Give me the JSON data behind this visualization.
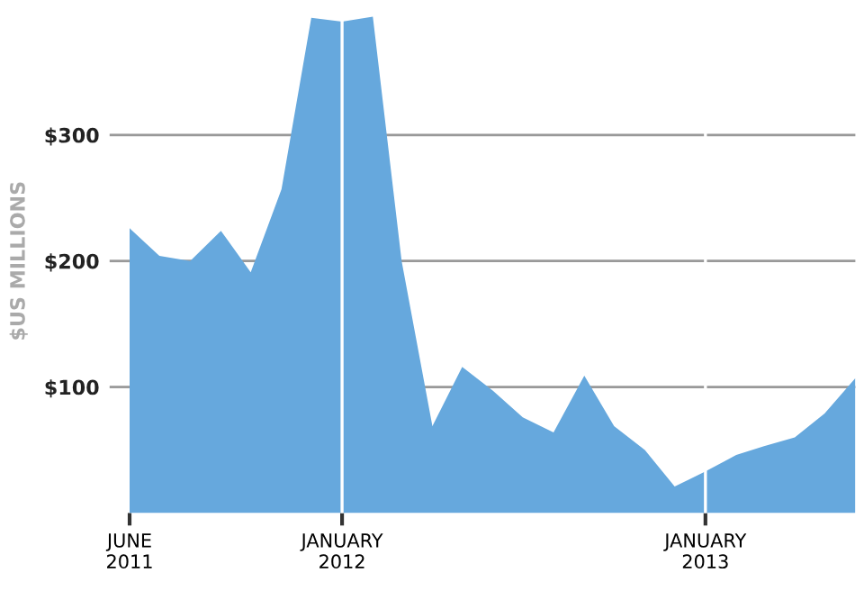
{
  "chart_data": {
    "type": "area",
    "ylabel": "$US MILLIONS",
    "x": [
      "2011-06",
      "2011-07",
      "2011-08",
      "2011-09",
      "2011-10",
      "2011-11",
      "2011-12",
      "2012-01",
      "2012-02",
      "2012-03",
      "2012-04",
      "2012-05",
      "2012-06",
      "2012-07",
      "2012-08",
      "2012-09",
      "2012-10",
      "2012-11",
      "2012-12",
      "2013-01",
      "2013-02",
      "2013-03",
      "2013-04",
      "2013-05",
      "2013-06"
    ],
    "series": [
      {
        "color": "#66a8dd",
        "values": [
          226,
          204,
          200,
          224,
          191,
          257,
          393,
          390,
          394,
          200,
          69,
          116,
          97,
          76,
          64,
          109,
          69,
          50,
          21,
          33,
          46,
          53,
          60,
          79,
          107
        ]
      }
    ],
    "xlim": [
      "2011-06",
      "2013-06"
    ],
    "xticks": [
      {
        "value": "2011-06",
        "label": "JUNE\n2011"
      },
      {
        "value": "2012-01",
        "label": "JANUARY\n2012"
      },
      {
        "value": "2013-01",
        "label": "JANUARY\n2013"
      }
    ],
    "ylim": [
      0,
      400
    ],
    "yticks": [
      {
        "value": 100,
        "label": "$100"
      },
      {
        "value": 200,
        "label": "$200"
      },
      {
        "value": 300,
        "label": "$300"
      }
    ],
    "ref_lines": [
      {
        "axis": "x",
        "value": "2012-01",
        "color": "#ffffff"
      },
      {
        "axis": "x",
        "value": "2013-01",
        "color": "#ffffff"
      }
    ],
    "grid": "y",
    "legend": false
  }
}
